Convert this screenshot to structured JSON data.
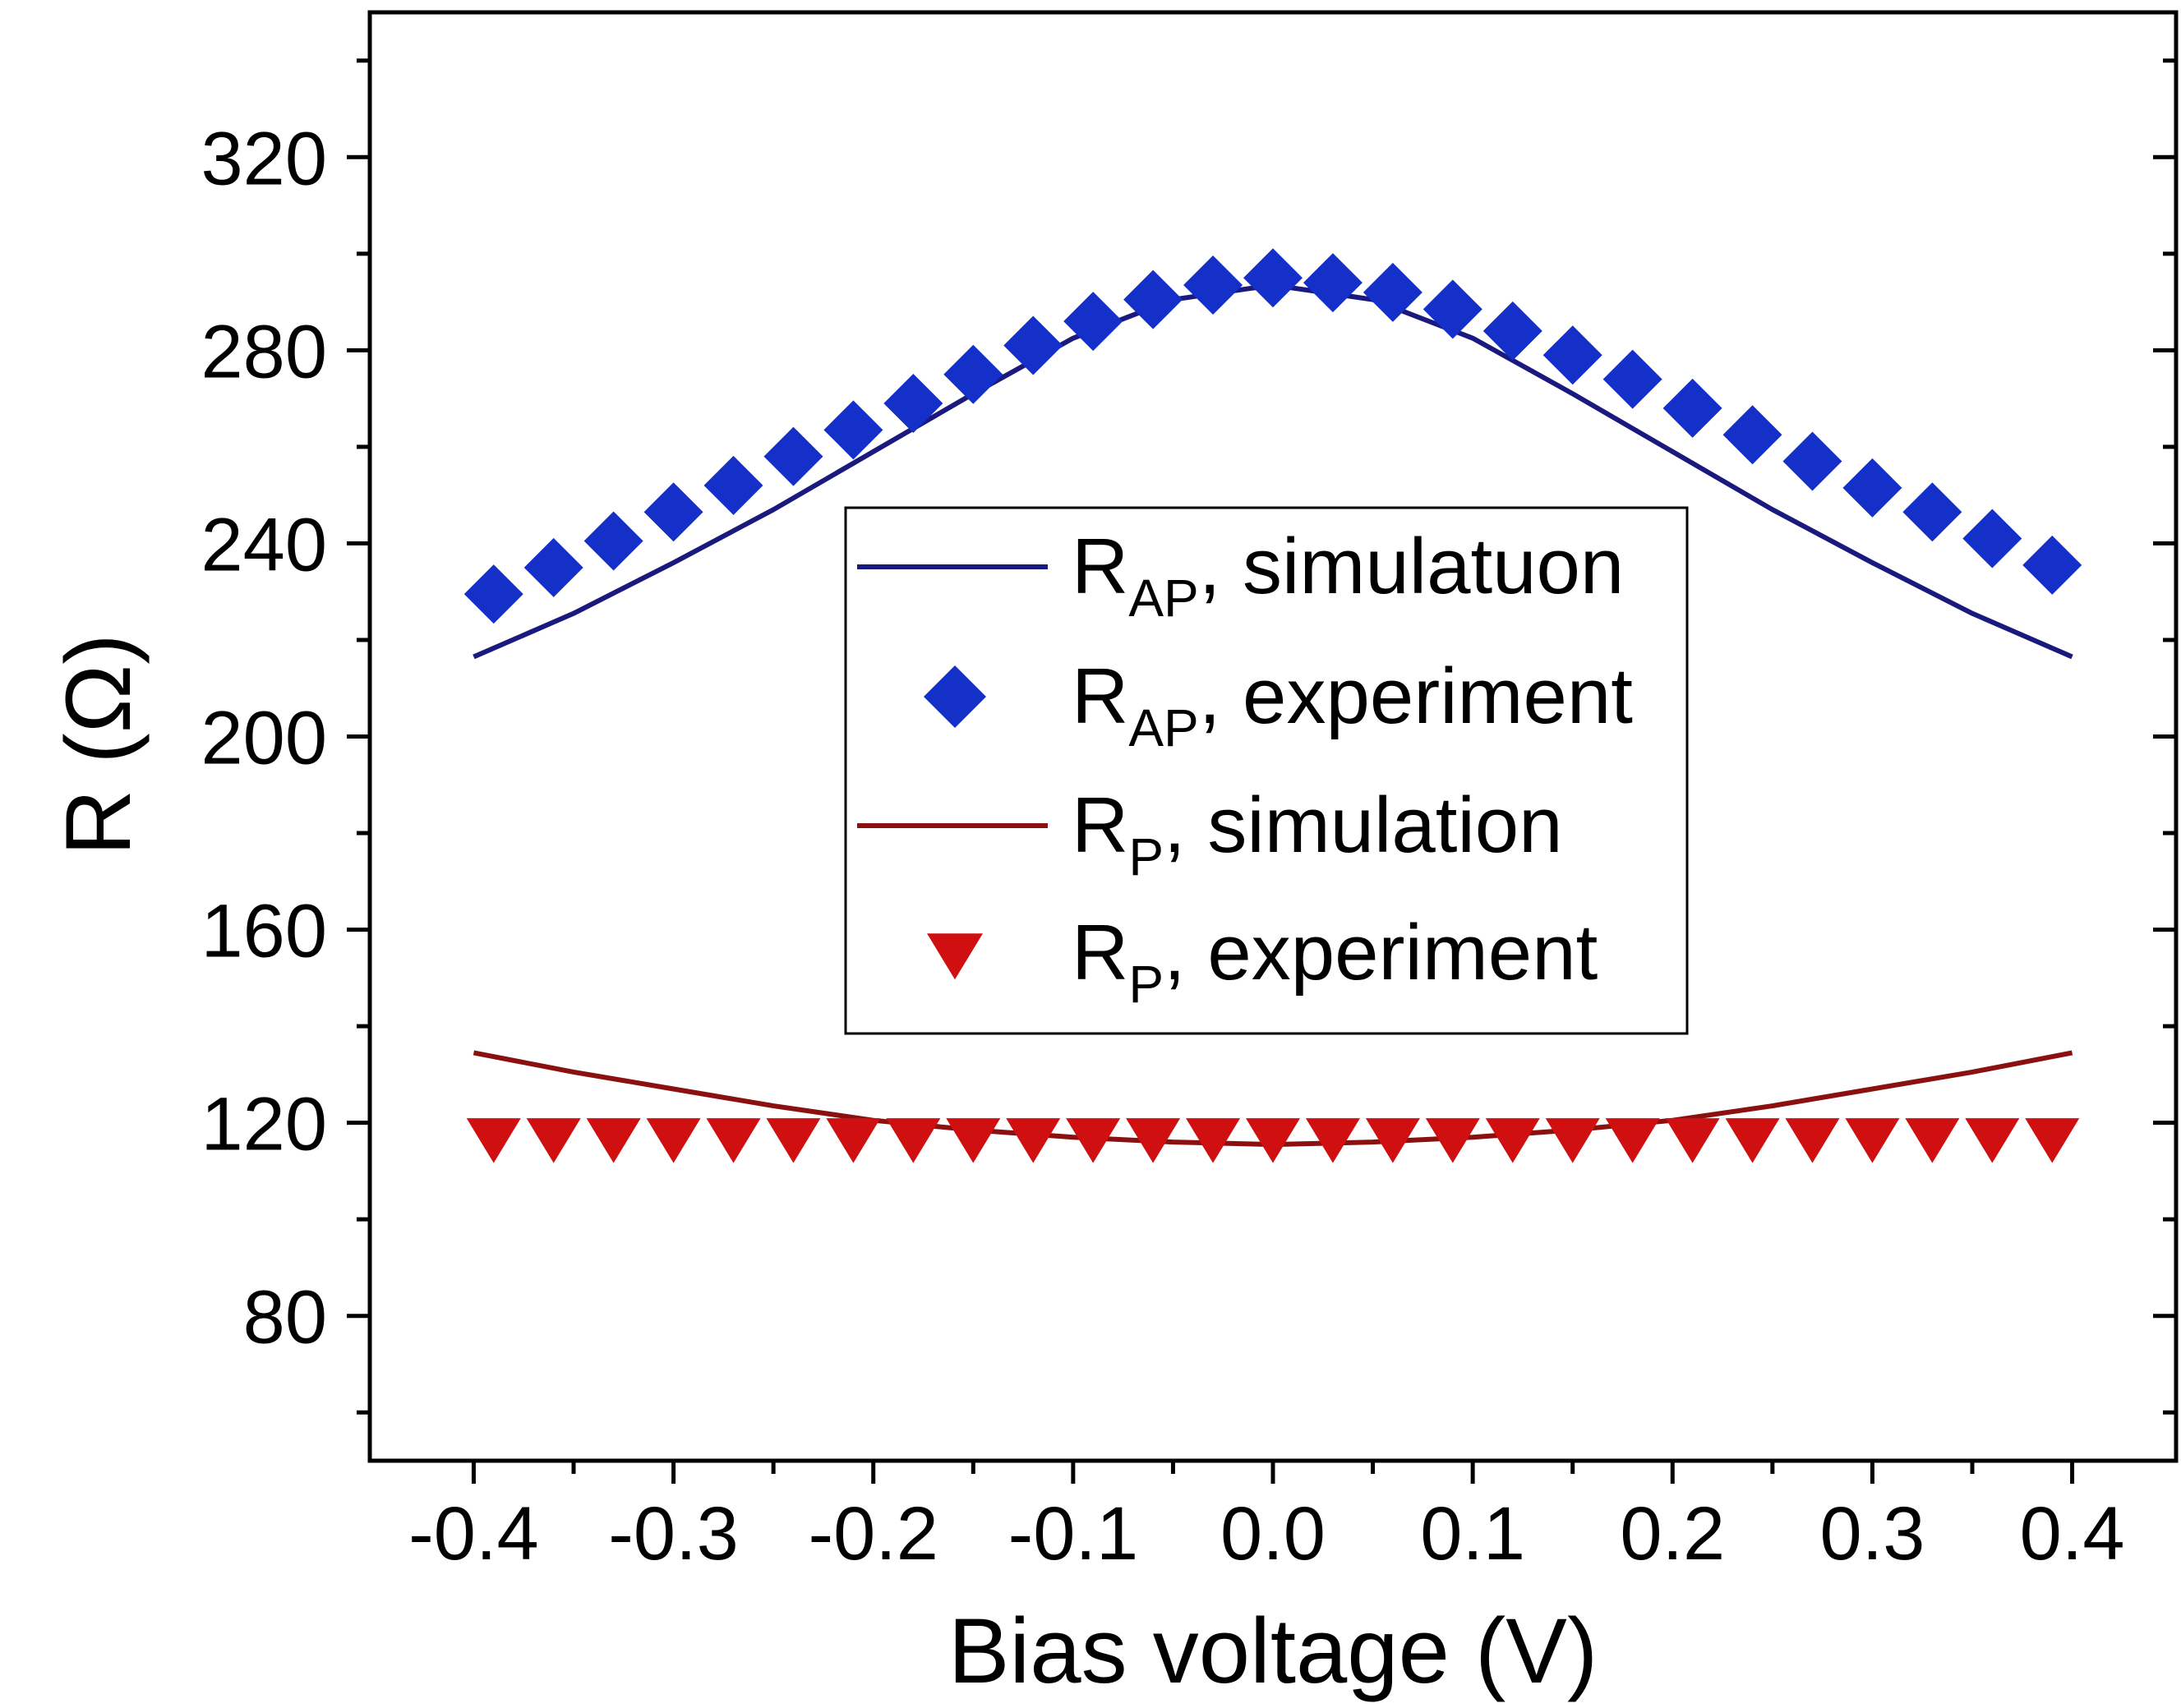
{
  "chart_data": {
    "type": "scatter",
    "title": "",
    "xlabel": "Bias voltage (V)",
    "ylabel": "R (Ω)",
    "xlim": [
      -0.452,
      0.452
    ],
    "ylim": [
      50,
      350
    ],
    "xticks": [
      -0.4,
      -0.3,
      -0.2,
      -0.1,
      0.0,
      0.1,
      0.2,
      0.3,
      0.4
    ],
    "xtick_labels": [
      "-0.4",
      "-0.3",
      "-0.2",
      "-0.1",
      "0.0",
      "0.1",
      "0.2",
      "0.3",
      "0.4"
    ],
    "yticks": [
      80,
      120,
      160,
      200,
      240,
      280,
      320
    ],
    "ytick_labels": [
      "80",
      "120",
      "160",
      "200",
      "240",
      "280",
      "320"
    ],
    "legend_position": "center",
    "colors": {
      "rap_sim": "#1a1a7e",
      "rap_exp": "#1530c8",
      "rp_sim": "#8b1010",
      "rp_exp": "#d01010"
    },
    "series": [
      {
        "name": "R_AP, simulatuon",
        "label_main": "R",
        "label_sub": "AP",
        "label_rest": ", simulatuon",
        "kind": "line",
        "color_key": "rap_sim",
        "x": [
          -0.4,
          -0.35,
          -0.3,
          -0.25,
          -0.2,
          -0.15,
          -0.1,
          -0.05,
          0.0,
          0.05,
          0.1,
          0.15,
          0.2,
          0.25,
          0.3,
          0.35,
          0.4
        ],
        "y": [
          216.5,
          225.5,
          236,
          247,
          259,
          271,
          282.5,
          290.5,
          293.5,
          290.5,
          282.5,
          271,
          259,
          247,
          236,
          225.5,
          216.5
        ]
      },
      {
        "name": "R_AP, experiment",
        "label_main": "R",
        "label_sub": "AP",
        "label_rest": ", experiment",
        "kind": "marker",
        "marker": "diamond",
        "color_key": "rap_exp",
        "x": [
          -0.39,
          -0.36,
          -0.33,
          -0.3,
          -0.27,
          -0.24,
          -0.21,
          -0.18,
          -0.15,
          -0.12,
          -0.09,
          -0.06,
          -0.03,
          0.0,
          0.03,
          0.06,
          0.09,
          0.12,
          0.15,
          0.18,
          0.21,
          0.24,
          0.27,
          0.3,
          0.33,
          0.36,
          0.39
        ],
        "y": [
          229.5,
          235,
          240.5,
          246.5,
          252,
          258,
          263.5,
          269,
          275,
          281,
          286,
          290.5,
          293.5,
          295,
          294,
          292,
          288.5,
          284,
          279,
          274,
          268,
          262.5,
          257,
          251.5,
          246.5,
          241,
          235.5
        ]
      },
      {
        "name": "R_P, simulation",
        "label_main": "R",
        "label_sub": "P",
        "label_rest": ", simulation",
        "kind": "line",
        "color_key": "rp_sim",
        "x": [
          -0.4,
          -0.35,
          -0.3,
          -0.25,
          -0.2,
          -0.15,
          -0.1,
          -0.05,
          0.0,
          0.05,
          0.1,
          0.15,
          0.2,
          0.25,
          0.3,
          0.35,
          0.4
        ],
        "y": [
          134.5,
          130.5,
          127,
          123.5,
          120.5,
          118.5,
          117,
          116,
          115.5,
          116,
          117,
          118.5,
          120.5,
          123.5,
          127,
          130.5,
          134.5
        ]
      },
      {
        "name": "R_P, experiment",
        "label_main": "R",
        "label_sub": "P",
        "label_rest": ", experiment",
        "kind": "marker",
        "marker": "triangle-down",
        "color_key": "rp_exp",
        "x": [
          -0.39,
          -0.36,
          -0.33,
          -0.3,
          -0.27,
          -0.24,
          -0.21,
          -0.18,
          -0.15,
          -0.12,
          -0.09,
          -0.06,
          -0.03,
          0.0,
          0.03,
          0.06,
          0.09,
          0.12,
          0.15,
          0.18,
          0.21,
          0.24,
          0.27,
          0.3,
          0.33,
          0.36,
          0.39
        ],
        "y": [
          117,
          117,
          117,
          117,
          117,
          117,
          117,
          117,
          117,
          117,
          117,
          117,
          117,
          117,
          117,
          117,
          117,
          117,
          117,
          117,
          117,
          117,
          117,
          117,
          117,
          117,
          117
        ]
      }
    ]
  }
}
